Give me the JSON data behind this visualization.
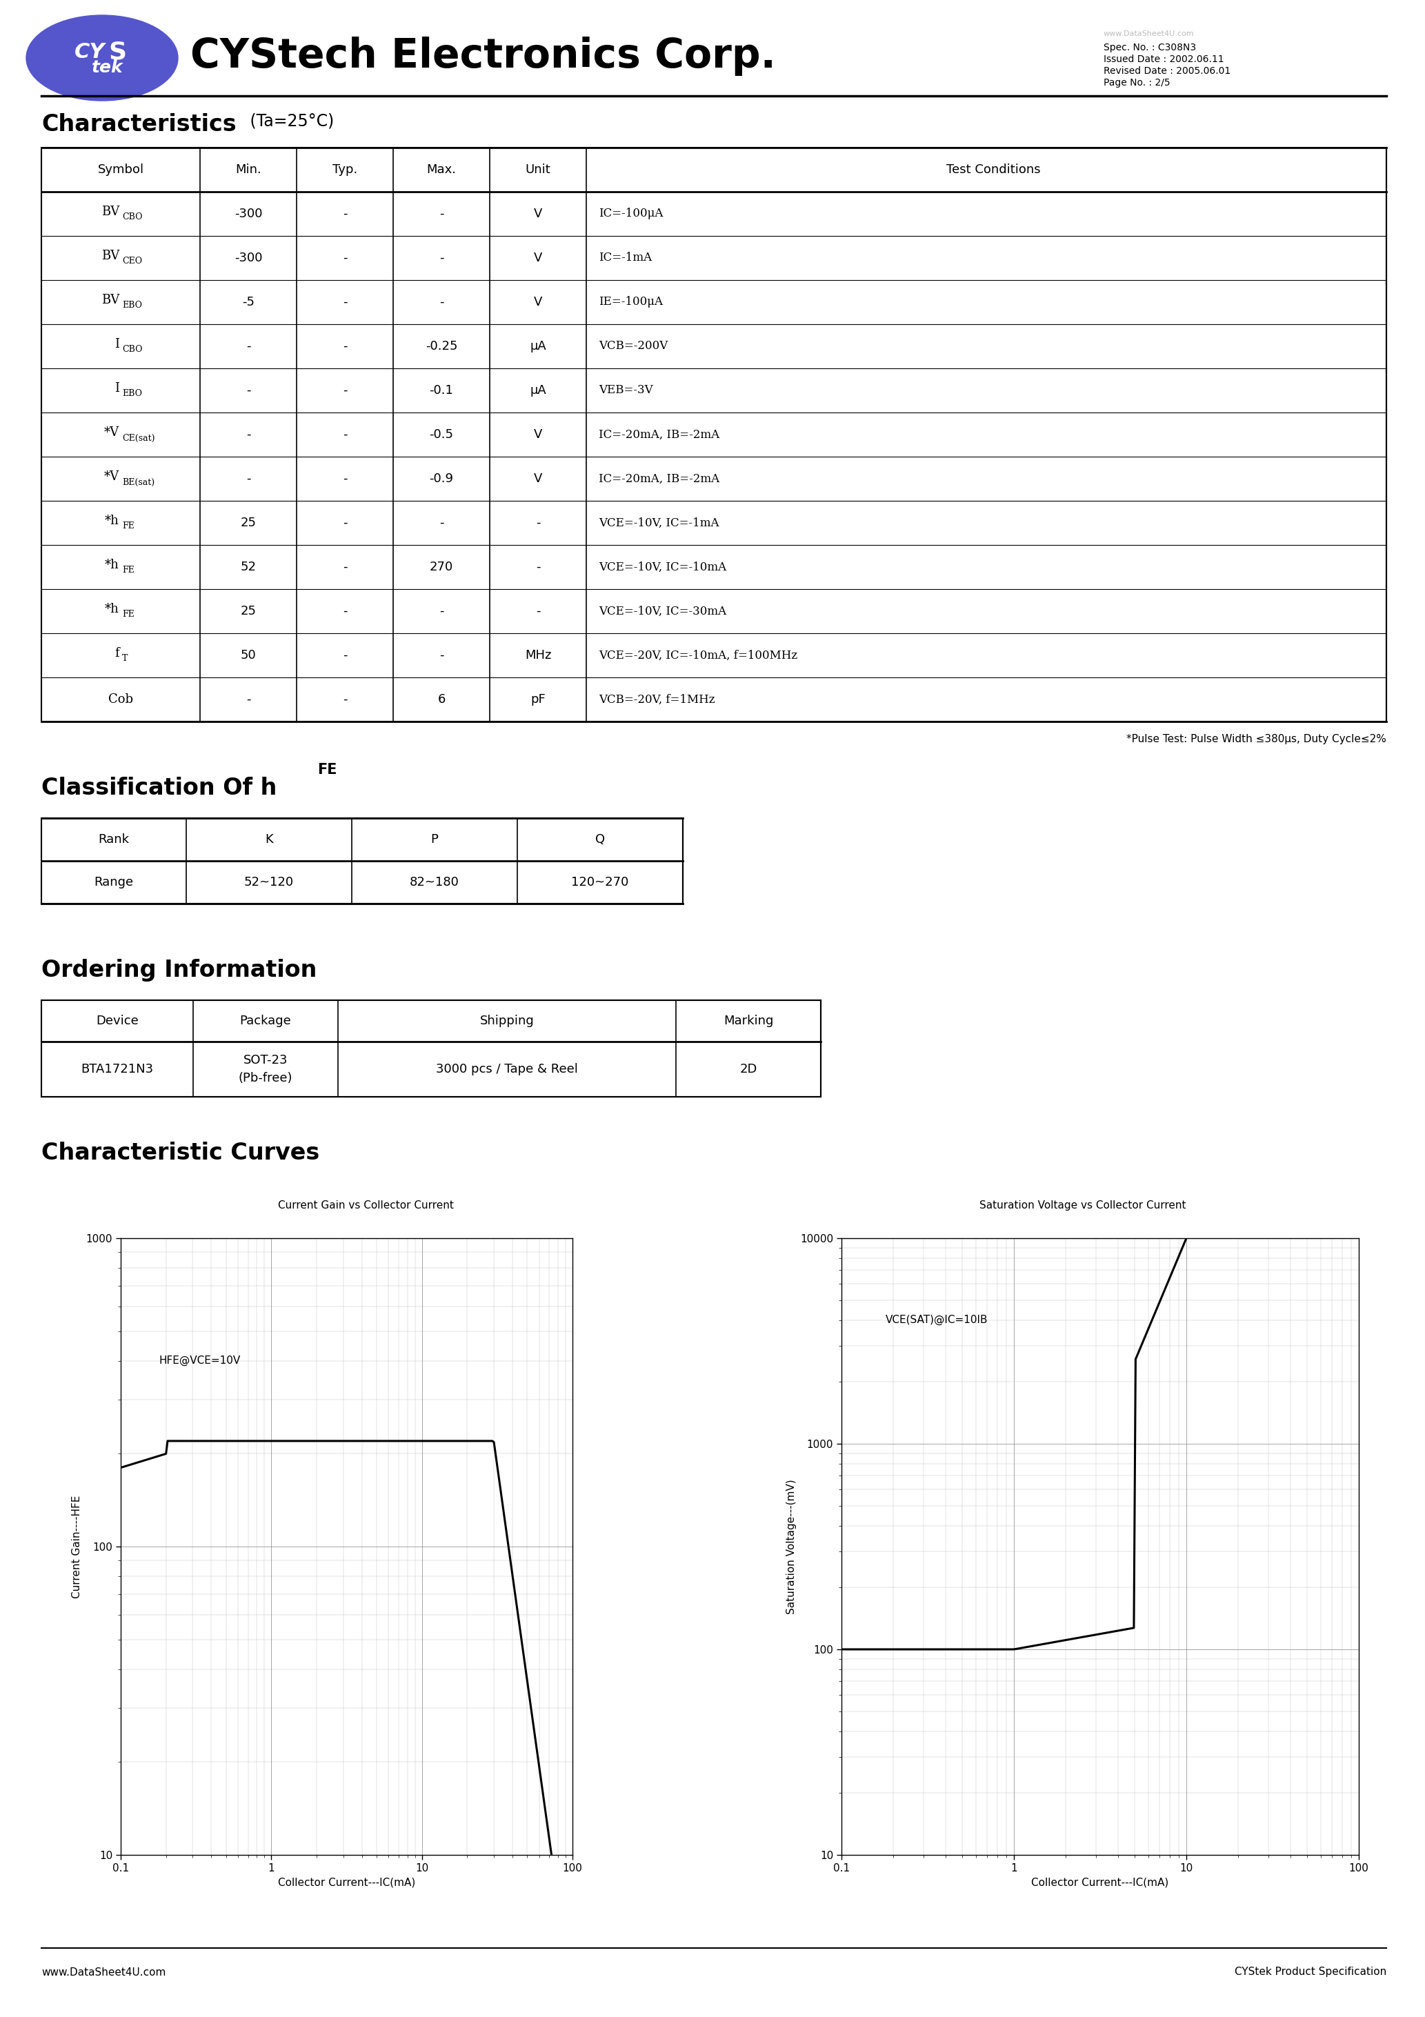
{
  "title": "CYStech Electronics Corp.",
  "spec_no": "Spec. No. : C308N3",
  "issued_date": "Issued Date : 2002.06.11",
  "revised_date": "Revised Date : 2005.06.01",
  "page_no": "Page No. : 2/5",
  "watermark_top": "www.DataSheet4U.com",
  "char_title": "Characteristics",
  "char_subtitle": " (Ta=25°C)",
  "char_headers": [
    "Symbol",
    "Min.",
    "Typ.",
    "Max.",
    "Unit",
    "Test Conditions"
  ],
  "pulse_note": "*Pulse Test: Pulse Width ≤380μs, Duty Cycle≤2%",
  "class_title_main": "Classification Of h",
  "class_title_sub": "FE",
  "class_headers": [
    "Rank",
    "K",
    "P",
    "Q"
  ],
  "class_data": [
    "Range",
    "52~120",
    "82~180",
    "120~270"
  ],
  "order_title": "Ordering Information",
  "order_headers": [
    "Device",
    "Package",
    "Shipping",
    "Marking"
  ],
  "order_data": [
    "BTA1721N3",
    "SOT-23\n(Pb-free)",
    "3000 pcs / Tape & Reel",
    "2D"
  ],
  "curve_title": "Characteristic Curves",
  "graph1_title": "Current Gain vs Collector Current",
  "graph1_ylabel": "Current Gain----HFE",
  "graph1_xlabel": "Collector Current---IC(mA)",
  "graph1_label": "HFE@VCE=10V",
  "graph2_title": "Saturation Voltage vs Collector Current",
  "graph2_ylabel": "Saturation Voltage---(mV)",
  "graph2_xlabel": "Collector Current---IC(mA)",
  "graph2_label": "VCE(SAT)@IC=10IB",
  "footer_left": "www.DataSheet4U.com",
  "footer_right": "CYStek Product Specification",
  "logo_color": "#5555cc",
  "bg_color": "#ffffff"
}
